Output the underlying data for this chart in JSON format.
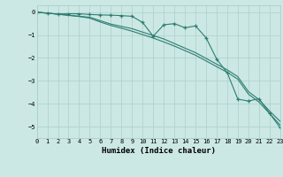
{
  "xlabel": "Humidex (Indice chaleur)",
  "bg_color": "#cce8e4",
  "grid_color": "#aacfcb",
  "line_color": "#2e7d72",
  "xlim": [
    0,
    23
  ],
  "ylim": [
    -5.5,
    0.3
  ],
  "yticks": [
    0,
    -1,
    -2,
    -3,
    -4,
    -5
  ],
  "xticks": [
    0,
    1,
    2,
    3,
    4,
    5,
    6,
    7,
    8,
    9,
    10,
    11,
    12,
    13,
    14,
    15,
    16,
    17,
    18,
    19,
    20,
    21,
    22,
    23
  ],
  "line1_x": [
    0,
    1,
    2,
    3,
    4,
    5,
    6,
    7,
    8,
    9,
    10,
    11,
    12,
    13,
    14,
    15,
    16,
    17,
    18,
    19,
    20,
    21,
    22,
    23
  ],
  "line1_y": [
    0.0,
    -0.05,
    -0.08,
    -0.07,
    -0.07,
    -0.1,
    -0.12,
    -0.13,
    -0.15,
    -0.18,
    -0.45,
    -1.05,
    -0.55,
    -0.5,
    -0.68,
    -0.6,
    -1.12,
    -2.05,
    -2.65,
    -3.8,
    -3.88,
    -3.78,
    -4.42,
    -5.05
  ],
  "line2_x": [
    0,
    1,
    2,
    3,
    4,
    5,
    6,
    7,
    8,
    9,
    10,
    11,
    12,
    13,
    14,
    15,
    16,
    17,
    18,
    19,
    20,
    21,
    22,
    23
  ],
  "line2_y": [
    0.0,
    -0.04,
    -0.09,
    -0.13,
    -0.18,
    -0.22,
    -0.37,
    -0.52,
    -0.62,
    -0.72,
    -0.87,
    -1.02,
    -1.17,
    -1.37,
    -1.57,
    -1.77,
    -2.02,
    -2.27,
    -2.52,
    -2.82,
    -3.47,
    -3.82,
    -4.32,
    -4.77
  ],
  "line3_x": [
    0,
    1,
    2,
    3,
    4,
    5,
    6,
    7,
    8,
    9,
    10,
    11,
    12,
    13,
    14,
    15,
    16,
    17,
    18,
    19,
    20,
    21,
    22,
    23
  ],
  "line3_y": [
    0.0,
    -0.04,
    -0.09,
    -0.14,
    -0.19,
    -0.26,
    -0.43,
    -0.58,
    -0.7,
    -0.83,
    -0.98,
    -1.13,
    -1.3,
    -1.48,
    -1.68,
    -1.88,
    -2.13,
    -2.38,
    -2.63,
    -2.93,
    -3.58,
    -3.93,
    -4.43,
    -4.93
  ]
}
